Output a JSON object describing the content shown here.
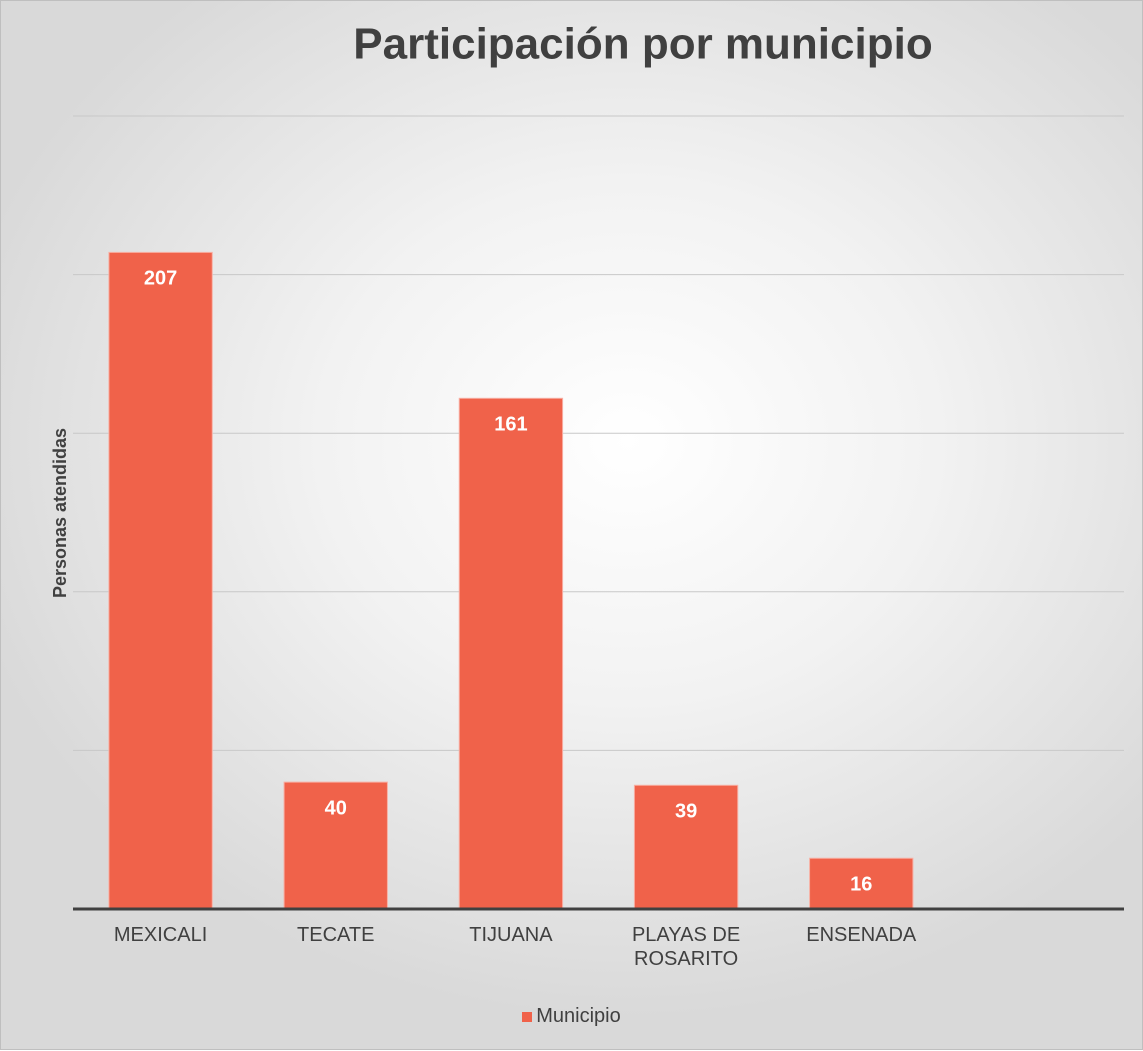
{
  "chart_data": {
    "type": "bar",
    "title": "Participación por municipio",
    "y_label": "Personas atendidas",
    "categories": [
      "MEXICALI",
      "TECATE",
      "TIJUANA",
      "PLAYAS DE ROSARITO",
      "ENSENADA",
      null
    ],
    "series": [
      {
        "name": "Municipio",
        "color": "#f0624a",
        "values": [
          207,
          40,
          161,
          39,
          16,
          null
        ]
      }
    ],
    "ylim": [
      0,
      250
    ],
    "yticks": [
      0,
      50,
      100,
      150,
      200,
      250
    ],
    "grid": true,
    "legend": "bottom"
  }
}
